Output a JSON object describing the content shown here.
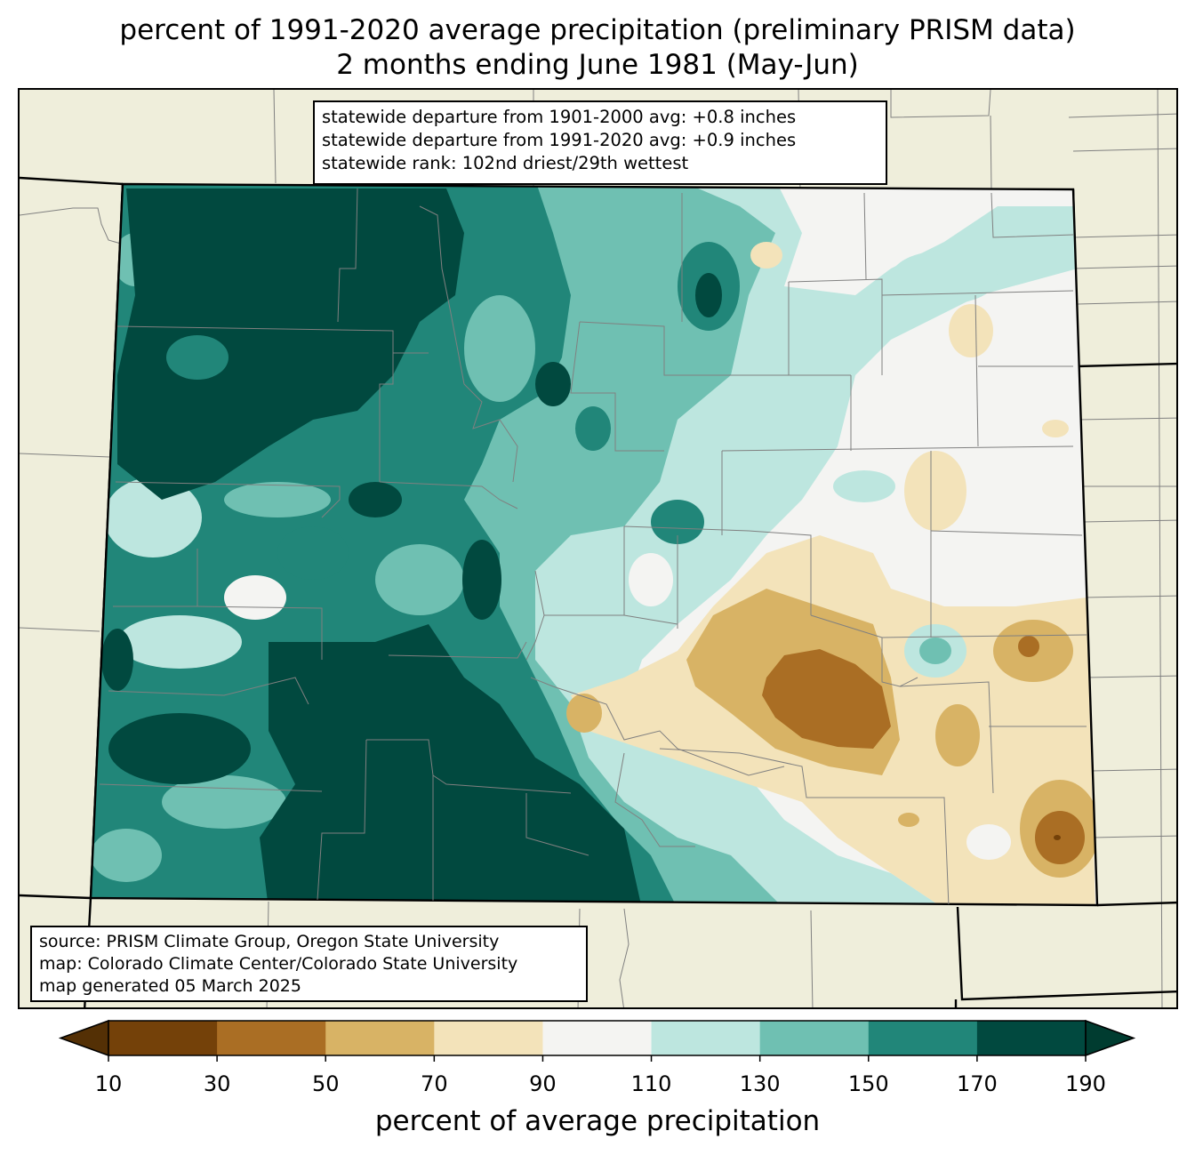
{
  "title": {
    "line1": "percent of 1991-2020 average precipitation (preliminary PRISM data)",
    "line2": "2 months ending June 1981 (May-Jun)"
  },
  "stats": {
    "line1": "statewide departure from 1901-2000 avg: +0.8 inches",
    "line2": "statewide departure from 1991-2020 avg: +0.9 inches",
    "line3": "statewide rank: 102nd driest/29th wettest"
  },
  "source": {
    "line1": "source: PRISM Climate Group, Oregon State University",
    "line2": "map: Colorado Climate Center/Colorado State University",
    "line3": "map generated 05 March 2025"
  },
  "colorbar": {
    "label": "percent of average precipitation",
    "ticks": [
      "10",
      "30",
      "50",
      "70",
      "90",
      "110",
      "130",
      "150",
      "170",
      "190"
    ],
    "under_color": "#543005",
    "over_color": "#003c30",
    "bins": [
      {
        "range": "10-30",
        "color": "#744109"
      },
      {
        "range": "30-50",
        "color": "#aa6e24"
      },
      {
        "range": "50-70",
        "color": "#d8b365"
      },
      {
        "range": "70-90",
        "color": "#f3e3ba"
      },
      {
        "range": "90-110",
        "color": "#f4f4f2"
      },
      {
        "range": "110-130",
        "color": "#bde6df"
      },
      {
        "range": "130-150",
        "color": "#6fc0b2"
      },
      {
        "range": "150-170",
        "color": "#218679"
      },
      {
        "range": "170-190",
        "color": "#01493f"
      }
    ]
  },
  "map_colors": {
    "background": "#efeedb",
    "county_lines": "#808080",
    "state_lines": "#000000"
  }
}
